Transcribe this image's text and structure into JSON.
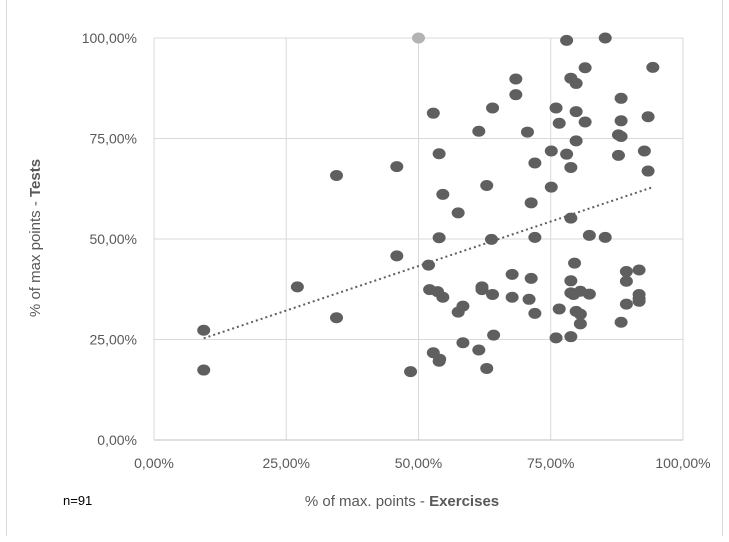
{
  "chart_data": {
    "type": "scatter",
    "title": "",
    "xlabel": {
      "normal": "% of max. points - ",
      "bold": "Exercises"
    },
    "ylabel": {
      "normal": "% of max points - ",
      "bold": "Tests"
    },
    "xlim": [
      0,
      100
    ],
    "ylim": [
      0,
      100
    ],
    "x_ticks": [
      0,
      25,
      50,
      75,
      100
    ],
    "y_ticks": [
      0,
      25,
      50,
      75,
      100
    ],
    "x_tick_labels": [
      "0,00%",
      "25,00%",
      "50,00%",
      "75,00%",
      "100,00%"
    ],
    "y_tick_labels": [
      "0,00%",
      "25,00%",
      "50,00%",
      "75,00%",
      "100,00%"
    ],
    "grid": "vertical and horizontal major gridlines",
    "legend": "none",
    "trendline": {
      "style": "dotted",
      "x": [
        9.4,
        94.3
      ],
      "y": [
        25.3,
        62.9
      ]
    },
    "colors": {
      "point": "#5f5f5f",
      "highlight_point": "#b3b3b3",
      "grid": "#d9d9d9",
      "trendline": "#5f5f5f"
    },
    "points": [
      [
        9.4,
        27.3
      ],
      [
        9.4,
        17.4
      ],
      [
        27.1,
        38.1
      ],
      [
        34.5,
        65.8
      ],
      [
        34.5,
        30.4
      ],
      [
        45.9,
        68.0
      ],
      [
        45.9,
        45.8
      ],
      [
        48.5,
        17.0
      ],
      [
        50.0,
        100.0
      ],
      [
        51.9,
        43.5
      ],
      [
        52.1,
        37.4
      ],
      [
        52.8,
        81.3
      ],
      [
        52.8,
        21.7
      ],
      [
        53.6,
        36.9
      ],
      [
        53.9,
        71.2
      ],
      [
        53.9,
        50.3
      ],
      [
        53.9,
        19.6
      ],
      [
        54.0,
        20.1
      ],
      [
        54.6,
        35.5
      ],
      [
        54.6,
        61.1
      ],
      [
        57.5,
        56.5
      ],
      [
        57.5,
        31.8
      ],
      [
        58.4,
        33.3
      ],
      [
        58.4,
        24.2
      ],
      [
        61.4,
        76.8
      ],
      [
        61.4,
        22.4
      ],
      [
        62.0,
        38.1
      ],
      [
        62.0,
        37.4
      ],
      [
        62.9,
        63.3
      ],
      [
        62.9,
        17.8
      ],
      [
        63.8,
        49.9
      ],
      [
        64.0,
        82.6
      ],
      [
        64.0,
        36.2
      ],
      [
        64.2,
        26.1
      ],
      [
        67.7,
        41.2
      ],
      [
        67.7,
        35.5
      ],
      [
        68.4,
        89.8
      ],
      [
        68.4,
        85.9
      ],
      [
        70.6,
        76.6
      ],
      [
        70.9,
        35.0
      ],
      [
        71.3,
        59.0
      ],
      [
        71.3,
        40.2
      ],
      [
        72.0,
        68.9
      ],
      [
        72.0,
        50.4
      ],
      [
        72.0,
        31.5
      ],
      [
        75.1,
        71.9
      ],
      [
        75.1,
        62.9
      ],
      [
        76.0,
        82.6
      ],
      [
        76.0,
        25.4
      ],
      [
        76.6,
        78.8
      ],
      [
        76.6,
        32.6
      ],
      [
        78.0,
        99.4
      ],
      [
        78.0,
        71.1
      ],
      [
        78.8,
        90.0
      ],
      [
        78.8,
        67.8
      ],
      [
        78.8,
        55.2
      ],
      [
        78.8,
        39.6
      ],
      [
        78.8,
        36.6
      ],
      [
        78.8,
        25.7
      ],
      [
        79.3,
        36.2
      ],
      [
        79.5,
        44.0
      ],
      [
        79.8,
        88.7
      ],
      [
        79.8,
        81.7
      ],
      [
        79.8,
        74.4
      ],
      [
        79.8,
        32.0
      ],
      [
        80.6,
        37.0
      ],
      [
        80.6,
        31.3
      ],
      [
        80.6,
        28.9
      ],
      [
        81.5,
        92.6
      ],
      [
        81.5,
        79.1
      ],
      [
        82.3,
        50.9
      ],
      [
        82.3,
        36.3
      ],
      [
        85.3,
        100.0
      ],
      [
        85.3,
        50.4
      ],
      [
        87.8,
        75.9
      ],
      [
        87.8,
        70.8
      ],
      [
        88.3,
        85.0
      ],
      [
        88.3,
        79.4
      ],
      [
        88.3,
        75.5
      ],
      [
        88.3,
        29.3
      ],
      [
        89.3,
        41.9
      ],
      [
        89.3,
        39.5
      ],
      [
        89.3,
        33.8
      ],
      [
        91.7,
        42.3
      ],
      [
        91.7,
        36.2
      ],
      [
        91.7,
        35.2
      ],
      [
        91.7,
        34.5
      ],
      [
        92.7,
        71.9
      ],
      [
        93.4,
        80.4
      ],
      [
        93.4,
        66.9
      ],
      [
        94.3,
        92.7
      ]
    ],
    "highlighted_point_index": 8
  },
  "annotation": "n=91"
}
